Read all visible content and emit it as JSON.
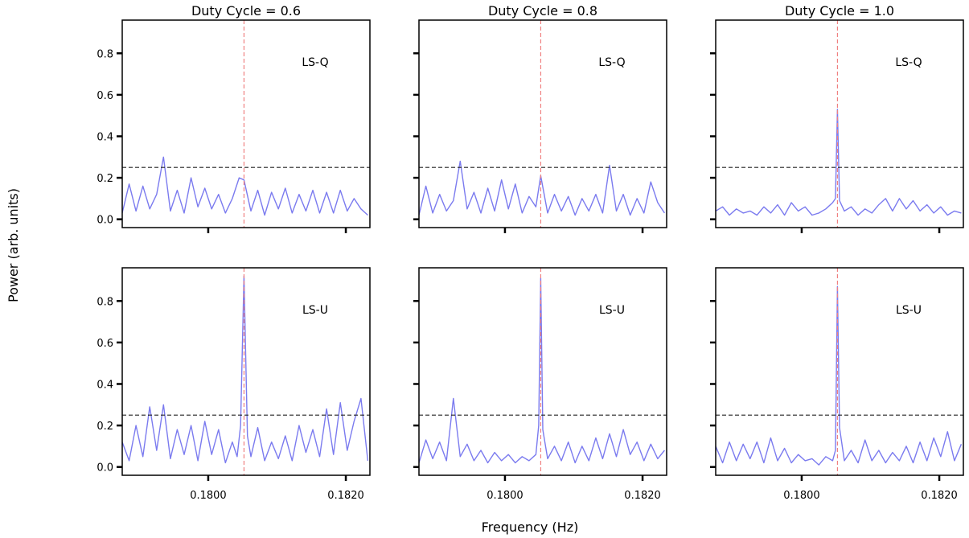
{
  "figure": {
    "ylabel": "Power (arb. units)",
    "xlabel": "Frequency (Hz)"
  },
  "chart_data": {
    "type": "line",
    "layout": "2x3 grid of panels, shared axes",
    "xlim": [
      0.17875,
      0.18235
    ],
    "ylim": [
      -0.04,
      0.96
    ],
    "xticks": [
      0.18,
      0.182
    ],
    "xtick_labels": [
      "0.1800",
      "0.1820"
    ],
    "yticks": [
      0.0,
      0.2,
      0.4,
      0.6,
      0.8
    ],
    "ytick_labels": [
      "0.0",
      "0.2",
      "0.4",
      "0.6",
      "0.8"
    ],
    "threshold": 0.25,
    "marker_frequency": 0.18052,
    "colors": {
      "series": "#7b7bef",
      "threshold": "#222222",
      "marker": "#f08080"
    },
    "columns": [
      "Duty Cycle = 0.6",
      "Duty Cycle = 0.8",
      "Duty Cycle = 1.0"
    ],
    "rows": [
      "LS-Q",
      "LS-U"
    ],
    "panels": [
      {
        "title": "Duty Cycle = 0.6",
        "label": "LS-Q",
        "x": [
          0.17875,
          0.17885,
          0.17895,
          0.17905,
          0.17915,
          0.17925,
          0.17935,
          0.17945,
          0.17955,
          0.17965,
          0.17975,
          0.17985,
          0.17995,
          0.18005,
          0.18015,
          0.18025,
          0.18035,
          0.18045,
          0.18052,
          0.18062,
          0.18072,
          0.18082,
          0.18092,
          0.18102,
          0.18112,
          0.18122,
          0.18132,
          0.18142,
          0.18152,
          0.18162,
          0.18172,
          0.18182,
          0.18192,
          0.18202,
          0.18212,
          0.18222,
          0.18232
        ],
        "y": [
          0.03,
          0.17,
          0.04,
          0.16,
          0.05,
          0.12,
          0.3,
          0.04,
          0.14,
          0.03,
          0.2,
          0.06,
          0.15,
          0.05,
          0.12,
          0.03,
          0.1,
          0.2,
          0.19,
          0.04,
          0.14,
          0.02,
          0.13,
          0.05,
          0.15,
          0.03,
          0.12,
          0.04,
          0.14,
          0.03,
          0.13,
          0.03,
          0.14,
          0.04,
          0.1,
          0.05,
          0.02
        ]
      },
      {
        "title": "Duty Cycle = 0.8",
        "label": "LS-Q",
        "x": [
          0.17875,
          0.17885,
          0.17895,
          0.17905,
          0.17915,
          0.17925,
          0.17935,
          0.17945,
          0.17955,
          0.17965,
          0.17975,
          0.17985,
          0.17995,
          0.18005,
          0.18015,
          0.18025,
          0.18035,
          0.18045,
          0.18052,
          0.18062,
          0.18072,
          0.18082,
          0.18092,
          0.18102,
          0.18112,
          0.18122,
          0.18132,
          0.18142,
          0.18152,
          0.18162,
          0.18172,
          0.18182,
          0.18192,
          0.18202,
          0.18212,
          0.18222,
          0.18232
        ],
        "y": [
          0.02,
          0.16,
          0.03,
          0.12,
          0.04,
          0.09,
          0.28,
          0.05,
          0.13,
          0.03,
          0.15,
          0.04,
          0.19,
          0.05,
          0.17,
          0.03,
          0.11,
          0.06,
          0.21,
          0.03,
          0.12,
          0.04,
          0.11,
          0.02,
          0.1,
          0.04,
          0.12,
          0.03,
          0.26,
          0.04,
          0.12,
          0.02,
          0.1,
          0.03,
          0.18,
          0.08,
          0.03
        ]
      },
      {
        "title": "Duty Cycle = 1.0",
        "label": "LS-Q",
        "x": [
          0.17875,
          0.17885,
          0.17895,
          0.17905,
          0.17915,
          0.17925,
          0.17935,
          0.17945,
          0.17955,
          0.17965,
          0.17975,
          0.17985,
          0.17995,
          0.18005,
          0.18015,
          0.18025,
          0.18035,
          0.18045,
          0.18049,
          0.18052,
          0.18055,
          0.18062,
          0.18072,
          0.18082,
          0.18092,
          0.18102,
          0.18112,
          0.18122,
          0.18132,
          0.18142,
          0.18152,
          0.18162,
          0.18172,
          0.18182,
          0.18192,
          0.18202,
          0.18212,
          0.18222,
          0.18232
        ],
        "y": [
          0.04,
          0.06,
          0.02,
          0.05,
          0.03,
          0.04,
          0.02,
          0.06,
          0.03,
          0.07,
          0.02,
          0.08,
          0.04,
          0.06,
          0.02,
          0.03,
          0.05,
          0.08,
          0.1,
          0.53,
          0.09,
          0.04,
          0.06,
          0.02,
          0.05,
          0.03,
          0.07,
          0.1,
          0.04,
          0.1,
          0.05,
          0.09,
          0.04,
          0.07,
          0.03,
          0.06,
          0.02,
          0.04,
          0.03
        ]
      },
      {
        "title": "Duty Cycle = 0.6",
        "label": "LS-U",
        "x": [
          0.17875,
          0.17885,
          0.17895,
          0.17905,
          0.17915,
          0.17925,
          0.17935,
          0.17945,
          0.17955,
          0.17965,
          0.17975,
          0.17985,
          0.17995,
          0.18005,
          0.18015,
          0.18025,
          0.18035,
          0.18042,
          0.18047,
          0.18052,
          0.18057,
          0.18062,
          0.18072,
          0.18082,
          0.18092,
          0.18102,
          0.18112,
          0.18122,
          0.18132,
          0.18142,
          0.18152,
          0.18162,
          0.18172,
          0.18182,
          0.18192,
          0.18202,
          0.18212,
          0.18222,
          0.18232
        ],
        "y": [
          0.12,
          0.03,
          0.2,
          0.05,
          0.29,
          0.08,
          0.3,
          0.04,
          0.18,
          0.06,
          0.2,
          0.03,
          0.22,
          0.06,
          0.18,
          0.02,
          0.12,
          0.05,
          0.2,
          0.92,
          0.15,
          0.05,
          0.19,
          0.03,
          0.12,
          0.04,
          0.15,
          0.03,
          0.2,
          0.07,
          0.18,
          0.05,
          0.28,
          0.06,
          0.31,
          0.08,
          0.22,
          0.33,
          0.03
        ]
      },
      {
        "title": "Duty Cycle = 0.8",
        "label": "LS-U",
        "x": [
          0.17875,
          0.17885,
          0.17895,
          0.17905,
          0.17915,
          0.17925,
          0.17935,
          0.17945,
          0.17955,
          0.17965,
          0.17975,
          0.17985,
          0.17995,
          0.18005,
          0.18015,
          0.18025,
          0.18035,
          0.18045,
          0.18049,
          0.18052,
          0.18055,
          0.18062,
          0.18072,
          0.18082,
          0.18092,
          0.18102,
          0.18112,
          0.18122,
          0.18132,
          0.18142,
          0.18152,
          0.18162,
          0.18172,
          0.18182,
          0.18192,
          0.18202,
          0.18212,
          0.18222,
          0.18232
        ],
        "y": [
          0.02,
          0.13,
          0.04,
          0.12,
          0.03,
          0.33,
          0.05,
          0.11,
          0.03,
          0.08,
          0.02,
          0.07,
          0.03,
          0.06,
          0.02,
          0.05,
          0.03,
          0.06,
          0.2,
          0.91,
          0.18,
          0.04,
          0.1,
          0.03,
          0.12,
          0.02,
          0.1,
          0.03,
          0.14,
          0.04,
          0.16,
          0.05,
          0.18,
          0.06,
          0.12,
          0.03,
          0.11,
          0.04,
          0.08
        ]
      },
      {
        "title": "Duty Cycle = 1.0",
        "label": "LS-U",
        "x": [
          0.17875,
          0.17885,
          0.17895,
          0.17905,
          0.17915,
          0.17925,
          0.17935,
          0.17945,
          0.17955,
          0.17965,
          0.17975,
          0.17985,
          0.17995,
          0.18005,
          0.18015,
          0.18025,
          0.18035,
          0.18045,
          0.18049,
          0.18052,
          0.18055,
          0.18062,
          0.18072,
          0.18082,
          0.18092,
          0.18102,
          0.18112,
          0.18122,
          0.18132,
          0.18142,
          0.18152,
          0.18162,
          0.18172,
          0.18182,
          0.18192,
          0.18202,
          0.18212,
          0.18222,
          0.18232
        ],
        "y": [
          0.1,
          0.02,
          0.12,
          0.03,
          0.11,
          0.04,
          0.12,
          0.02,
          0.14,
          0.03,
          0.09,
          0.02,
          0.06,
          0.03,
          0.04,
          0.01,
          0.05,
          0.03,
          0.08,
          0.87,
          0.19,
          0.03,
          0.08,
          0.02,
          0.13,
          0.03,
          0.08,
          0.02,
          0.07,
          0.03,
          0.1,
          0.02,
          0.12,
          0.03,
          0.14,
          0.05,
          0.17,
          0.03,
          0.11
        ]
      }
    ]
  }
}
